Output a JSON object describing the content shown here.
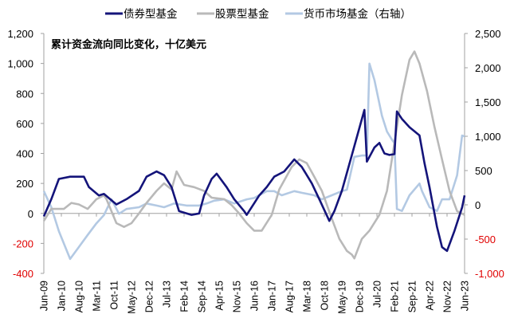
{
  "chart_data": {
    "type": "line",
    "title": "",
    "annotation": "累计资金流向同比变化，十亿美元",
    "x_unit": "months since Jun-09",
    "x_tick_labels": [
      "Jun-09",
      "Jan-10",
      "Aug-10",
      "Mar-11",
      "Oct-11",
      "May-12",
      "Dec-12",
      "Jul-13",
      "Feb-14",
      "Sep-14",
      "Apr-15",
      "Nov-15",
      "Jun-16",
      "Jan-17",
      "Aug-17",
      "Mar-18",
      "Oct-18",
      "May-19",
      "Dec-19",
      "Jul-20",
      "Feb-21",
      "Sep-21",
      "Apr-22",
      "Nov-22",
      "Jun-23"
    ],
    "x_tick_step_months": 7,
    "xlim": [
      0,
      168
    ],
    "left_axis": {
      "ylim": [
        -400,
        1200
      ],
      "ticks": [
        -400,
        -200,
        0,
        200,
        400,
        600,
        800,
        1000,
        1200
      ],
      "tick_labels": [
        "-400",
        "-200",
        "0",
        "200",
        "400",
        "600",
        "800",
        "1,000",
        "1,200"
      ]
    },
    "right_axis": {
      "ylim": [
        -1000,
        2500
      ],
      "ticks": [
        -1000,
        -500,
        0,
        500,
        1000,
        1500,
        2000,
        2500
      ],
      "tick_labels": [
        "-1,000",
        "-500",
        "0",
        "500",
        "1,000",
        "1,500",
        "2,000",
        "2,500"
      ]
    },
    "negative_label_color": "#e00000",
    "legend_position": "top",
    "series": [
      {
        "name": "债券型基金",
        "axis": "left",
        "color": "#14147a",
        "points": [
          [
            0,
            -20
          ],
          [
            3,
            95
          ],
          [
            6,
            230
          ],
          [
            10.5,
            245
          ],
          [
            16,
            245
          ],
          [
            18,
            175
          ],
          [
            22,
            120
          ],
          [
            24,
            130
          ],
          [
            29,
            60
          ],
          [
            33,
            95
          ],
          [
            38,
            150
          ],
          [
            41,
            245
          ],
          [
            45,
            280
          ],
          [
            48,
            255
          ],
          [
            51,
            175
          ],
          [
            54,
            15
          ],
          [
            59,
            -10
          ],
          [
            62,
            0
          ],
          [
            64,
            120
          ],
          [
            67,
            230
          ],
          [
            69,
            265
          ],
          [
            73,
            175
          ],
          [
            76,
            95
          ],
          [
            80,
            15
          ],
          [
            81,
            -10
          ],
          [
            86,
            120
          ],
          [
            89,
            175
          ],
          [
            92,
            245
          ],
          [
            96,
            280
          ],
          [
            100,
            360
          ],
          [
            103,
            310
          ],
          [
            107,
            200
          ],
          [
            110,
            95
          ],
          [
            114,
            -50
          ],
          [
            116,
            15
          ],
          [
            119,
            150
          ],
          [
            123,
            390
          ],
          [
            128,
            690
          ],
          [
            129,
            345
          ],
          [
            132,
            440
          ],
          [
            134,
            470
          ],
          [
            136,
            400
          ],
          [
            138,
            390
          ],
          [
            140,
            395
          ],
          [
            141,
            680
          ],
          [
            143,
            630
          ],
          [
            146,
            575
          ],
          [
            150,
            520
          ],
          [
            152,
            335
          ],
          [
            154,
            175
          ],
          [
            157,
            -90
          ],
          [
            159,
            -225
          ],
          [
            161,
            -250
          ],
          [
            164,
            -115
          ],
          [
            167,
            40
          ],
          [
            168,
            120
          ]
        ]
      },
      {
        "name": "股票型基金",
        "axis": "left",
        "color": "#b9b9b9",
        "points": [
          [
            0,
            -50
          ],
          [
            3,
            30
          ],
          [
            8,
            30
          ],
          [
            11,
            70
          ],
          [
            14,
            60
          ],
          [
            17.5,
            30
          ],
          [
            21,
            95
          ],
          [
            24,
            120
          ],
          [
            25,
            95
          ],
          [
            29,
            -65
          ],
          [
            32,
            -90
          ],
          [
            35,
            -65
          ],
          [
            38,
            0
          ],
          [
            41,
            70
          ],
          [
            45,
            150
          ],
          [
            48,
            200
          ],
          [
            51,
            160
          ],
          [
            53,
            280
          ],
          [
            56,
            190
          ],
          [
            60,
            175
          ],
          [
            64,
            150
          ],
          [
            67,
            105
          ],
          [
            72,
            95
          ],
          [
            75,
            55
          ],
          [
            78,
            0
          ],
          [
            81,
            -65
          ],
          [
            84,
            -115
          ],
          [
            87,
            -115
          ],
          [
            91,
            -10
          ],
          [
            94,
            160
          ],
          [
            99,
            310
          ],
          [
            102,
            360
          ],
          [
            105,
            335
          ],
          [
            108,
            245
          ],
          [
            111,
            150
          ],
          [
            115,
            -35
          ],
          [
            118,
            -170
          ],
          [
            121,
            -250
          ],
          [
            123,
            -275
          ],
          [
            124,
            -300
          ],
          [
            127,
            -170
          ],
          [
            130,
            -115
          ],
          [
            134,
            -10
          ],
          [
            137,
            150
          ],
          [
            140,
            470
          ],
          [
            143,
            790
          ],
          [
            146,
            1025
          ],
          [
            148,
            1080
          ],
          [
            150,
            1000
          ],
          [
            153,
            815
          ],
          [
            156,
            575
          ],
          [
            159,
            360
          ],
          [
            162,
            150
          ],
          [
            165,
            15
          ],
          [
            168,
            -10
          ]
        ]
      },
      {
        "name": "货币市场基金（右轴）",
        "axis": "right",
        "color": "#b3c9e3",
        "points": [
          [
            0,
            200
          ],
          [
            3,
            -35
          ],
          [
            6,
            -385
          ],
          [
            10.5,
            -790
          ],
          [
            14,
            -615
          ],
          [
            17.5,
            -440
          ],
          [
            21,
            -270
          ],
          [
            24,
            -150
          ],
          [
            27,
            80
          ],
          [
            30,
            -130
          ],
          [
            33,
            -60
          ],
          [
            38,
            -35
          ],
          [
            41,
            20
          ],
          [
            45,
            -10
          ],
          [
            48,
            -35
          ],
          [
            52,
            20
          ],
          [
            57,
            -10
          ],
          [
            62,
            -10
          ],
          [
            65,
            20
          ],
          [
            68,
            60
          ],
          [
            72,
            80
          ],
          [
            76,
            20
          ],
          [
            81,
            80
          ],
          [
            84,
            100
          ],
          [
            89,
            200
          ],
          [
            92,
            200
          ],
          [
            95,
            140
          ],
          [
            100,
            200
          ],
          [
            103,
            175
          ],
          [
            108,
            140
          ],
          [
            111,
            80
          ],
          [
            115,
            140
          ],
          [
            119,
            200
          ],
          [
            121,
            220
          ],
          [
            124,
            700
          ],
          [
            127,
            720
          ],
          [
            129,
            720
          ],
          [
            130,
            2060
          ],
          [
            132,
            1820
          ],
          [
            135,
            1300
          ],
          [
            137,
            1070
          ],
          [
            139,
            950
          ],
          [
            140,
            900
          ],
          [
            141,
            -60
          ],
          [
            143,
            -90
          ],
          [
            146,
            140
          ],
          [
            150,
            310
          ],
          [
            151,
            200
          ],
          [
            154,
            -35
          ],
          [
            157,
            -90
          ],
          [
            159,
            80
          ],
          [
            162,
            80
          ],
          [
            165,
            430
          ],
          [
            167,
            1010
          ],
          [
            168,
            1000
          ]
        ]
      }
    ]
  }
}
